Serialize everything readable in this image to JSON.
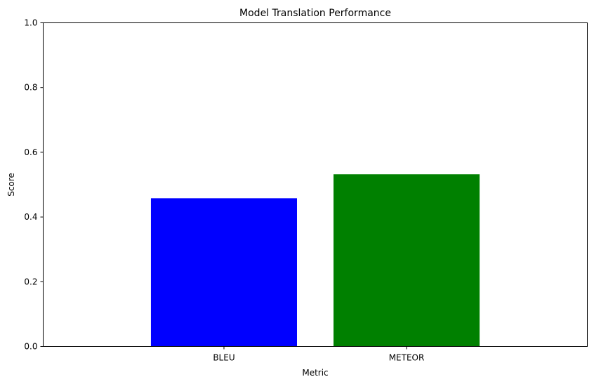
{
  "chart_data": {
    "type": "bar",
    "title": "Model Translation Performance",
    "xlabel": "Metric",
    "ylabel": "Score",
    "categories": [
      "BLEU",
      "METEOR"
    ],
    "values": [
      0.458,
      0.532
    ],
    "colors": [
      "#0000ff",
      "#008000"
    ],
    "ylim": [
      0,
      1
    ],
    "yticks": [
      "0.0",
      "0.2",
      "0.4",
      "0.6",
      "0.8",
      "1.0"
    ],
    "grid": false,
    "legend": "none"
  }
}
